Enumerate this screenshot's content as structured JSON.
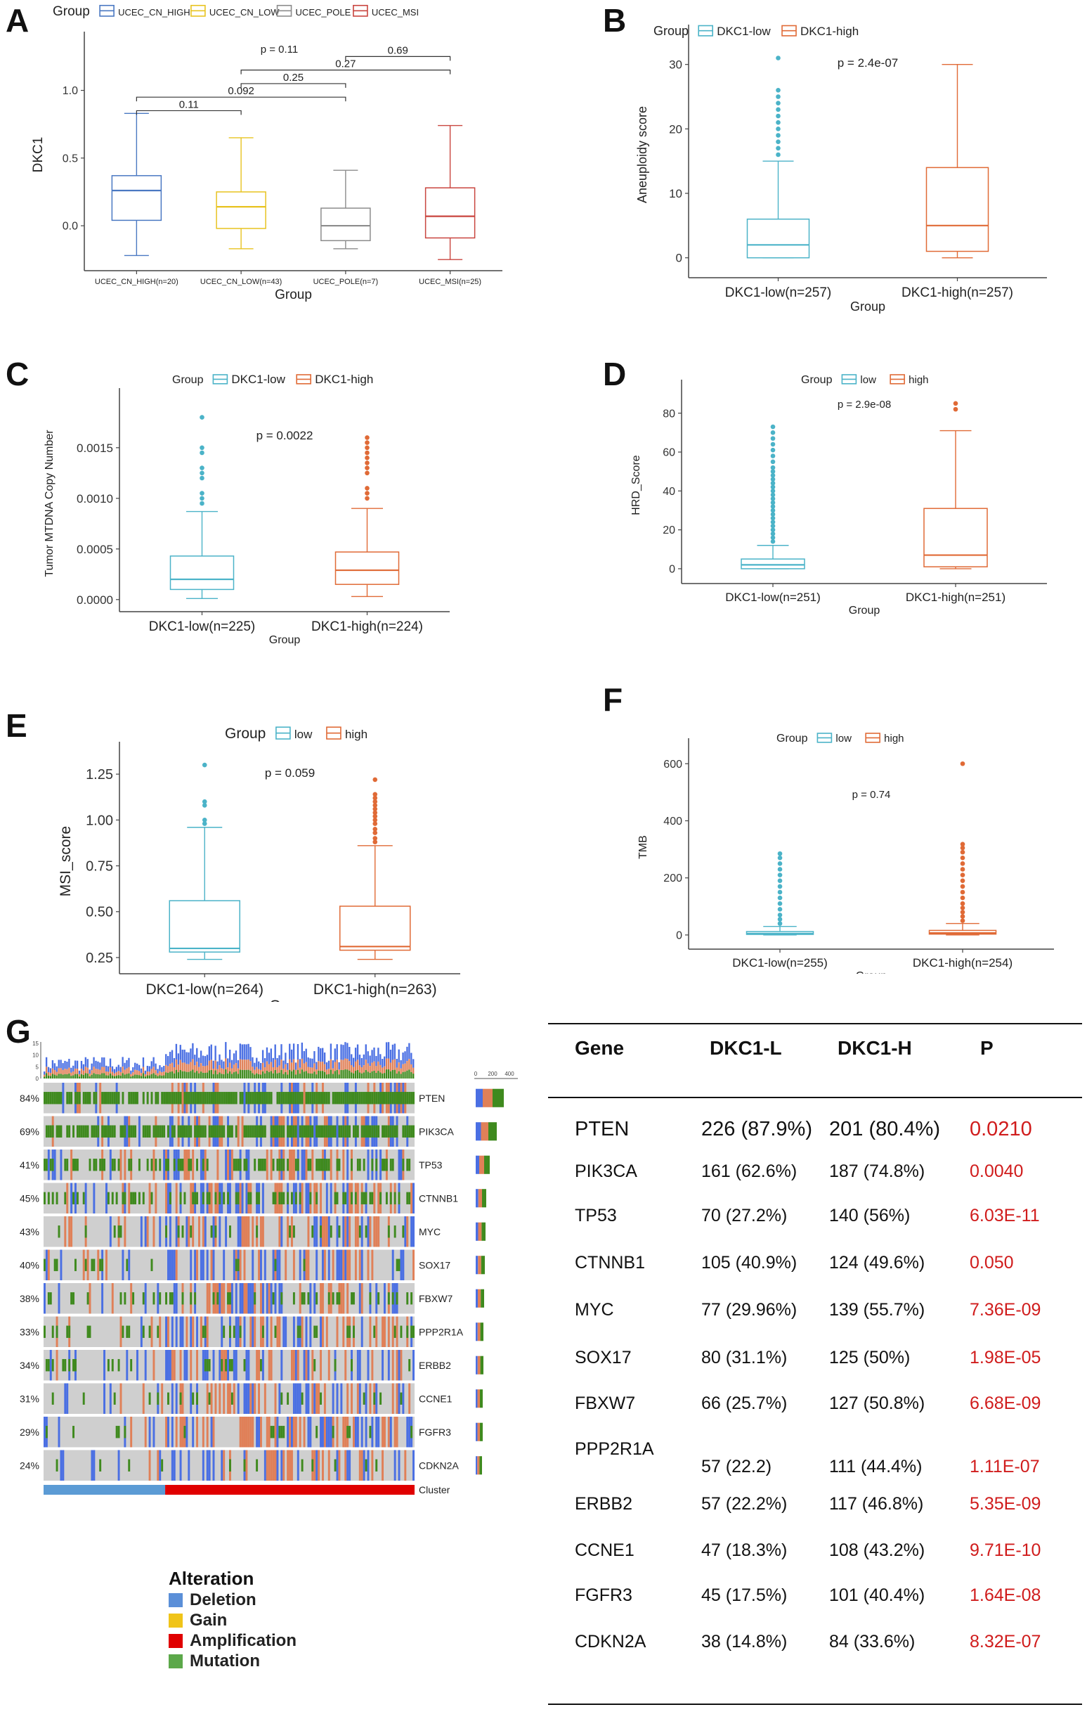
{
  "panel_labels": [
    "A",
    "B",
    "C",
    "D",
    "E",
    "F",
    "G"
  ],
  "chart_data": [
    {
      "id": "A",
      "type": "box",
      "legend_title": "Group",
      "legend_labels": [
        "UCEC_CN_HIGH",
        "UCEC_CN_LOW",
        "UCEC_POLE",
        "UCEC_MSI"
      ],
      "colors": [
        "#4a78c2",
        "#e8c320",
        "#8c8c8c",
        "#c9453f"
      ],
      "categories": [
        "UCEC_CN_HIGH(n=20)",
        "UCEC_CN_LOW(n=43)",
        "UCEC_POLE(n=7)",
        "UCEC_MSI(n=25)"
      ],
      "xlabel": "Group",
      "ylabel": "DKC1",
      "ylim": [
        -0.28,
        1.33
      ],
      "yticks": [
        0.0,
        0.5,
        1.0
      ],
      "ytick_labels": [
        "0.0",
        "0.5",
        "1.0"
      ],
      "boxes": [
        {
          "min": -0.22,
          "q1": 0.04,
          "median": 0.26,
          "q3": 0.37,
          "max": 0.83,
          "outliers": []
        },
        {
          "min": -0.17,
          "q1": -0.02,
          "median": 0.14,
          "q3": 0.25,
          "max": 0.65,
          "outliers": []
        },
        {
          "min": -0.17,
          "q1": -0.11,
          "median": 0.0,
          "q3": 0.13,
          "max": 0.41,
          "outliers": []
        },
        {
          "min": -0.25,
          "q1": -0.09,
          "median": 0.07,
          "q3": 0.28,
          "max": 0.74,
          "outliers": []
        }
      ],
      "global_p": "p = 0.11",
      "brackets": [
        {
          "from": 0,
          "to": 1,
          "y": 0.85,
          "label": "0.11"
        },
        {
          "from": 0,
          "to": 2,
          "y": 0.95,
          "label": "0.092"
        },
        {
          "from": 1,
          "to": 2,
          "y": 1.05,
          "label": "0.25"
        },
        {
          "from": 1,
          "to": 3,
          "y": 1.15,
          "label": "0.27"
        },
        {
          "from": 2,
          "to": 3,
          "y": 1.25,
          "label": "0.69"
        }
      ]
    },
    {
      "id": "B",
      "type": "box",
      "legend_title": "Group",
      "legend_labels": [
        "DKC1-low",
        "DKC1-high"
      ],
      "colors": [
        "#4bb3c8",
        "#e06a36"
      ],
      "categories": [
        "DKC1-low(n=257)",
        "DKC1-high(n=257)"
      ],
      "xlabel": "Group",
      "ylabel": "Aneuploidy score",
      "ylim": [
        -2,
        34
      ],
      "yticks": [
        0,
        10,
        20,
        30
      ],
      "ytick_labels": [
        "0",
        "10",
        "20",
        "30"
      ],
      "boxes": [
        {
          "min": 0,
          "q1": 0,
          "median": 2,
          "q3": 6,
          "max": 15,
          "outliers": [
            16,
            17,
            18,
            19,
            20,
            21,
            22,
            23,
            24,
            25,
            26,
            31
          ]
        },
        {
          "min": 0,
          "q1": 1,
          "median": 5,
          "q3": 14,
          "max": 30,
          "outliers": []
        }
      ],
      "global_p": "p = 2.4e-07"
    },
    {
      "id": "C",
      "type": "box",
      "legend_title": "Group",
      "legend_labels": [
        "DKC1-low",
        "DKC1-high"
      ],
      "colors": [
        "#4bb3c8",
        "#e06a36"
      ],
      "categories": [
        "DKC1-low(n=225)",
        "DKC1-high(n=224)"
      ],
      "xlabel": "Group",
      "ylabel": "Tumor MTDNA Copy Number",
      "ylim": [
        -5e-05,
        0.00195
      ],
      "yticks": [
        0,
        0.0005,
        0.001,
        0.0015
      ],
      "ytick_labels": [
        "0.0000",
        "0.0005",
        "0.0010",
        "0.0015"
      ],
      "boxes": [
        {
          "min": 1e-05,
          "q1": 0.0001,
          "median": 0.0002,
          "q3": 0.00043,
          "max": 0.00087,
          "outliers": [
            0.00095,
            0.001,
            0.00105,
            0.0012,
            0.00125,
            0.0013,
            0.00145,
            0.0015,
            0.0018
          ]
        },
        {
          "min": 3e-05,
          "q1": 0.00015,
          "median": 0.00029,
          "q3": 0.00047,
          "max": 0.0009,
          "outliers": [
            0.001,
            0.00105,
            0.0011,
            0.00125,
            0.0013,
            0.00135,
            0.0014,
            0.00145,
            0.0015,
            0.00155,
            0.0016
          ]
        }
      ],
      "global_p": "p = 0.0022"
    },
    {
      "id": "D",
      "type": "box",
      "legend_title": "Group",
      "legend_labels": [
        "low",
        "high"
      ],
      "colors": [
        "#4bb3c8",
        "#e06a36"
      ],
      "categories": [
        "DKC1-low(n=251)",
        "DKC1-high(n=251)"
      ],
      "xlabel": "Group",
      "ylabel": "HRD_Score",
      "ylim": [
        -4,
        90
      ],
      "yticks": [
        0,
        20,
        40,
        60,
        80
      ],
      "ytick_labels": [
        "0",
        "20",
        "40",
        "60",
        "80"
      ],
      "boxes": [
        {
          "min": 0,
          "q1": 0,
          "median": 2,
          "q3": 5,
          "max": 12,
          "outliers": [
            14,
            16,
            18,
            20,
            22,
            24,
            26,
            28,
            30,
            32,
            34,
            36,
            38,
            40,
            42,
            44,
            46,
            48,
            50,
            52,
            55,
            58,
            61,
            64,
            67,
            70,
            73
          ]
        },
        {
          "min": 0,
          "q1": 1,
          "median": 7,
          "q3": 31,
          "max": 71,
          "outliers": [
            82,
            85
          ]
        }
      ],
      "global_p": "p = 2.9e-08"
    },
    {
      "id": "E",
      "type": "box",
      "legend_title": "Group",
      "legend_labels": [
        "low",
        "high"
      ],
      "colors": [
        "#4bb3c8",
        "#e06a36"
      ],
      "categories": [
        "DKC1-low(n=264)",
        "DKC1-high(n=263)"
      ],
      "xlabel": "Group",
      "ylabel": "MSI_score",
      "ylim": [
        0.2,
        1.35
      ],
      "yticks": [
        0.25,
        0.5,
        0.75,
        1.0,
        1.25
      ],
      "ytick_labels": [
        "0.25",
        "0.50",
        "0.75",
        "1.00",
        "1.25"
      ],
      "boxes": [
        {
          "min": 0.24,
          "q1": 0.28,
          "median": 0.3,
          "q3": 0.56,
          "max": 0.96,
          "outliers": [
            0.98,
            1.0,
            1.08,
            1.1,
            1.3
          ]
        },
        {
          "min": 0.24,
          "q1": 0.29,
          "median": 0.31,
          "q3": 0.53,
          "max": 0.86,
          "outliers": [
            0.88,
            0.9,
            0.93,
            0.95,
            0.98,
            1.0,
            1.02,
            1.04,
            1.06,
            1.08,
            1.1,
            1.12,
            1.14,
            1.22
          ]
        }
      ],
      "global_p": "p = 0.059"
    },
    {
      "id": "F",
      "type": "box",
      "legend_title": "Group",
      "legend_labels": [
        "low",
        "high"
      ],
      "colors": [
        "#4bb3c8",
        "#e06a36"
      ],
      "categories": [
        "DKC1-low(n=255)",
        "DKC1-high(n=254)"
      ],
      "xlabel": "Group",
      "ylabel": "TMB",
      "ylim": [
        -25,
        640
      ],
      "yticks": [
        0,
        200,
        400,
        600
      ],
      "ytick_labels": [
        "0",
        "200",
        "400",
        "600"
      ],
      "boxes": [
        {
          "min": 0,
          "q1": 2,
          "median": 5,
          "q3": 12,
          "max": 30,
          "outliers": [
            40,
            55,
            70,
            90,
            110,
            130,
            150,
            170,
            190,
            210,
            230,
            250,
            270,
            285
          ]
        },
        {
          "min": 0,
          "q1": 3,
          "median": 7,
          "q3": 16,
          "max": 40,
          "outliers": [
            50,
            65,
            80,
            95,
            110,
            130,
            150,
            170,
            190,
            210,
            230,
            250,
            270,
            290,
            305,
            318,
            600
          ]
        }
      ],
      "global_p": "p = 0.74"
    },
    {
      "id": "G",
      "type": "oncoprint",
      "genes": [
        "PTEN",
        "PIK3CA",
        "TP53",
        "CTNNB1",
        "MYC",
        "SOX17",
        "FBXW7",
        "PPP2R1A",
        "ERBB2",
        "CCNE1",
        "FGFR3",
        "CDKN2A"
      ],
      "percents": [
        "84%",
        "69%",
        "41%",
        "45%",
        "43%",
        "40%",
        "38%",
        "33%",
        "34%",
        "31%",
        "29%",
        "24%"
      ],
      "top_axis_ticks": [
        "15",
        "10",
        "5",
        "0"
      ],
      "right_axis_ticks": [
        "0",
        "200",
        "400"
      ],
      "cluster_label": "Cluster",
      "cluster_colors": [
        "#5b9bd5",
        "#e00000"
      ],
      "alteration_colors": {
        "Deletion": "#4a6fe3",
        "Gain": "#f0c419",
        "Amplification": "#e08058",
        "Mutation": "#3f8a1e",
        "None": "#cfcfcf"
      },
      "legend_title": "Alteration",
      "legend": [
        {
          "label": "Deletion",
          "color": "#5b8fd8"
        },
        {
          "label": "Gain",
          "color": "#f0c419"
        },
        {
          "label": "Amplification",
          "color": "#e00000"
        },
        {
          "label": "Mutation",
          "color": "#5ca84a"
        }
      ]
    }
  ],
  "table": {
    "headers": [
      "Gene",
      "DKC1-L",
      "DKC1-H",
      "P"
    ],
    "rows": [
      {
        "gene": "PTEN",
        "low": "226 (87.9%)",
        "high": "201 (80.4%)",
        "p": "0.0210"
      },
      {
        "gene": "PIK3CA",
        "low": "161 (62.6%)",
        "high": "187 (74.8%)",
        "p": "0.0040"
      },
      {
        "gene": "TP53",
        "low": "70 (27.2%)",
        "high": "140 (56%)",
        "p": "6.03E-11"
      },
      {
        "gene": "CTNNB1",
        "low": "105 (40.9%)",
        "high": "124 (49.6%)",
        "p": "0.050"
      },
      {
        "gene": "MYC",
        "low": "77 (29.96%)",
        "high": "139 (55.7%)",
        "p": "7.36E-09"
      },
      {
        "gene": "SOX17",
        "low": "80 (31.1%)",
        "high": "125 (50%)",
        "p": "1.98E-05"
      },
      {
        "gene": "FBXW7",
        "low": "66 (25.7%)",
        "high": "127 (50.8%)",
        "p": "6.68E-09"
      },
      {
        "gene": "PPP2R1A",
        "low": "57 (22.2)",
        "high": "111 (44.4%)",
        "p": "1.11E-07"
      },
      {
        "gene": "ERBB2",
        "low": "57 (22.2%)",
        "high": "117 (46.8%)",
        "p": "5.35E-09"
      },
      {
        "gene": "CCNE1",
        "low": "47 (18.3%)",
        "high": "108 (43.2%)",
        "p": "9.71E-10"
      },
      {
        "gene": "FGFR3",
        "low": "45 (17.5%)",
        "high": "101 (40.4%)",
        "p": "1.64E-08"
      },
      {
        "gene": "CDKN2A",
        "low": "38 (14.8%)",
        "high": "84 (33.6%)",
        "p": "8.32E-07"
      }
    ]
  }
}
